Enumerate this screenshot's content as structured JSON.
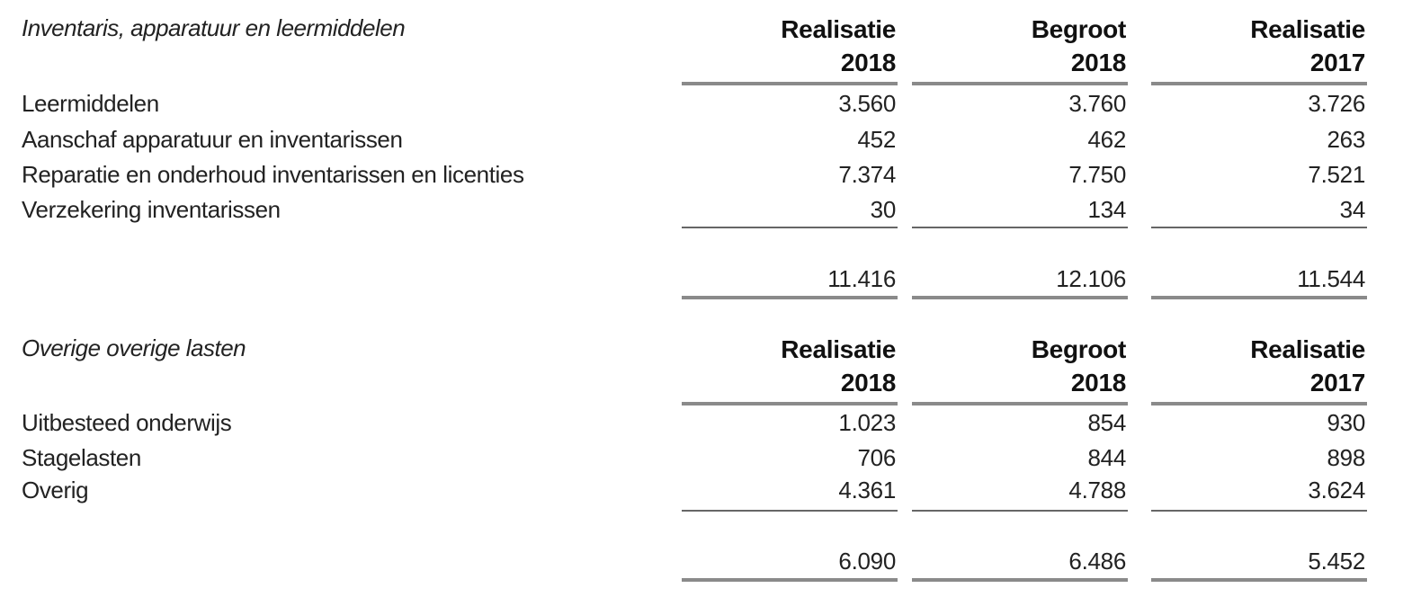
{
  "table1": {
    "title": "Inventaris, apparatuur en leermiddelen",
    "columns": [
      {
        "line1": "Realisatie",
        "line2": "2018"
      },
      {
        "line1": "Begroot",
        "line2": "2018"
      },
      {
        "line1": "Realisatie",
        "line2": "2017"
      }
    ],
    "rows": [
      {
        "label": "Leermiddelen",
        "values": [
          "3.560",
          "3.760",
          "3.726"
        ]
      },
      {
        "label": "Aanschaf apparatuur en inventarissen",
        "values": [
          "452",
          "462",
          "263"
        ]
      },
      {
        "label": "Reparatie en onderhoud inventarissen en licenties",
        "values": [
          "7.374",
          "7.750",
          "7.521"
        ]
      },
      {
        "label": "Verzekering inventarissen",
        "values": [
          "30",
          "134",
          "34"
        ]
      }
    ],
    "totals": [
      "11.416",
      "12.106",
      "11.544"
    ]
  },
  "table2": {
    "title": "Overige overige lasten",
    "columns": [
      {
        "line1": "Realisatie",
        "line2": "2018"
      },
      {
        "line1": "Begroot",
        "line2": "2018"
      },
      {
        "line1": "Realisatie",
        "line2": "2017"
      }
    ],
    "rows": [
      {
        "label": "Uitbesteed onderwijs",
        "values": [
          "1.023",
          "854",
          "930"
        ]
      },
      {
        "label": "Stagelasten",
        "values": [
          "706",
          "844",
          "898"
        ]
      },
      {
        "label": "Overig",
        "values": [
          "4.361",
          "4.788",
          "3.624"
        ]
      }
    ],
    "totals": [
      "6.090",
      "6.486",
      "5.452"
    ]
  }
}
